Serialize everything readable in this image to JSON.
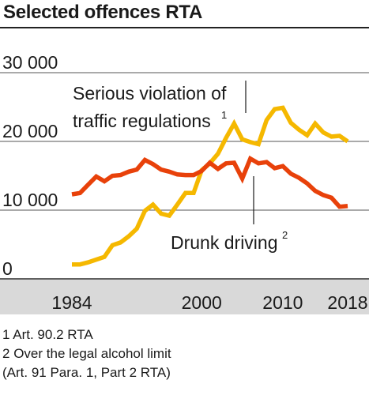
{
  "title": "Selected offences RTA",
  "chart_data": {
    "type": "line",
    "title": "Selected offences RTA",
    "x_tick_labels": [
      "1984",
      "2000",
      "2010",
      "2018"
    ],
    "y_tick_labels": [
      "30 000",
      "20 000",
      "10 000",
      "0"
    ],
    "ylim": [
      0,
      30000
    ],
    "xlim": [
      1984,
      2018
    ],
    "grid": "horizontal",
    "x": [
      1984,
      1985,
      1986,
      1987,
      1988,
      1989,
      1990,
      1991,
      1992,
      1993,
      1994,
      1995,
      1996,
      1997,
      1998,
      1999,
      2000,
      2001,
      2002,
      2003,
      2004,
      2005,
      2006,
      2007,
      2008,
      2009,
      2010,
      2011,
      2012,
      2013,
      2014,
      2015,
      2016,
      2017,
      2018
    ],
    "series": [
      {
        "name": "Serious violation of traffic regulations",
        "footnote_ref": "1",
        "color": "#f5b800",
        "values": [
          2100,
          2100,
          2400,
          2800,
          3200,
          4900,
          5300,
          6200,
          7300,
          9900,
          10800,
          9500,
          9200,
          10800,
          12500,
          12500,
          15800,
          16800,
          18200,
          20500,
          22600,
          20300,
          19900,
          19600,
          23100,
          24700,
          24900,
          22700,
          21700,
          20900,
          22600,
          21300,
          20700,
          20800,
          20000
        ]
      },
      {
        "name": "Drunk driving",
        "footnote_ref": "2",
        "color": "#e8410a",
        "values": [
          12300,
          12500,
          13700,
          14900,
          14200,
          15000,
          15100,
          15600,
          15900,
          17300,
          16700,
          15900,
          15600,
          15200,
          15100,
          15100,
          15700,
          16900,
          16000,
          16800,
          16900,
          14600,
          17500,
          16800,
          17000,
          16100,
          16400,
          15300,
          14700,
          13900,
          12800,
          12200,
          11800,
          10500,
          10600
        ]
      }
    ],
    "annotations": [
      {
        "text": "Serious violation of traffic regulations",
        "sup": "1",
        "lines": [
          "Serious violation of",
          "traffic regulations"
        ]
      },
      {
        "text": "Drunk driving",
        "sup": "2"
      }
    ]
  },
  "footnotes": [
    {
      "num": "1",
      "text": "Art. 90.2 RTA"
    },
    {
      "num": "2",
      "text": "Over the legal alcohol limit",
      "continuation": "(Art. 91 Para. 1, Part 2 RTA)"
    }
  ]
}
